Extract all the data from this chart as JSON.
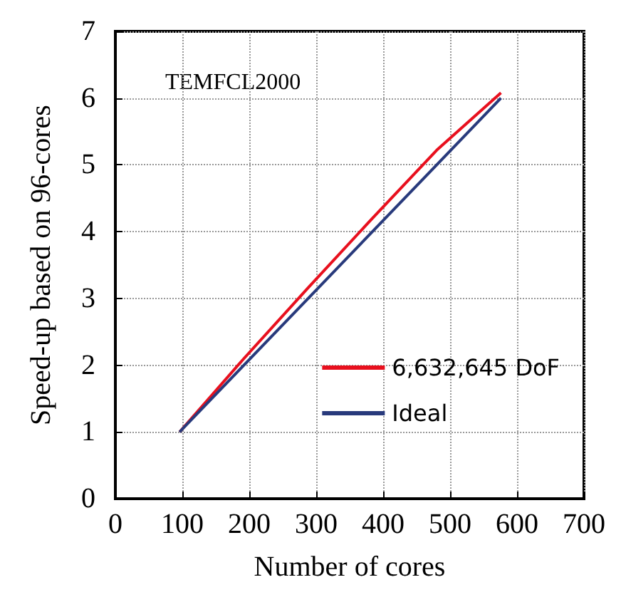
{
  "chart_data": {
    "type": "line",
    "annotations": [
      "TEMFCL2000"
    ],
    "xlabel": "Number of cores",
    "ylabel": "Speed-up based on 96-cores",
    "xlim": [
      0,
      700
    ],
    "xticks": [
      0,
      100,
      200,
      300,
      400,
      500,
      600,
      700
    ],
    "ylim": [
      0,
      7
    ],
    "yticks": [
      0,
      1,
      2,
      3,
      4,
      5,
      6,
      7
    ],
    "grid": true,
    "legend": "bottom right",
    "line_style": "solid",
    "marker": "none",
    "series": [
      {
        "name": "6,632,645 DoF",
        "color": "#e8101e",
        "x": [
          96,
          192,
          288,
          384,
          480,
          576
        ],
        "values": [
          1,
          2.1,
          3.16,
          4.2,
          5.22,
          6.08
        ]
      },
      {
        "name": "Ideal",
        "color": "#283a7c",
        "x": [
          96,
          576
        ],
        "values": [
          1,
          6
        ]
      }
    ]
  }
}
